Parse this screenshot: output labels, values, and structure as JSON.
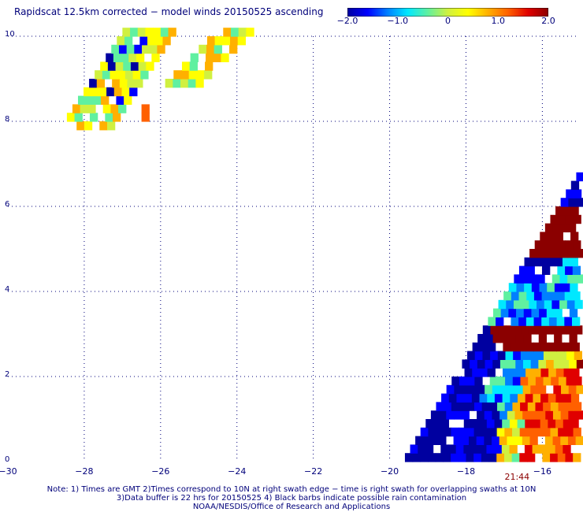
{
  "title": "Rapidscat 12.5km corrected − model winds 20150525 ascending",
  "colorbar": {
    "labels": [
      "−2.0",
      "−1.0",
      "0",
      "1.0",
      "2.0"
    ],
    "values": [
      -2.0,
      -1.0,
      0,
      1.0,
      2.0
    ],
    "range": [
      -2.0,
      2.0
    ],
    "colors": [
      "#0000a0",
      "#0000ff",
      "#0080ff",
      "#00e8ff",
      "#60f0a0",
      "#d0f040",
      "#ffff00",
      "#ffb000",
      "#ff6000",
      "#e00000",
      "#8b0000"
    ]
  },
  "map": {
    "xlim": [
      -30,
      -15.1
    ],
    "ylim": [
      0,
      10
    ],
    "x_ticks": [
      -30,
      -28,
      -26,
      -24,
      -22,
      -20,
      -18,
      -16
    ],
    "y_ticks": [
      0,
      2,
      4,
      6,
      8,
      10
    ],
    "x_tick_labels": [
      "−30",
      "−28",
      "−26",
      "−24",
      "−22",
      "−20",
      "−18",
      "−16"
    ],
    "y_tick_labels": [
      "0",
      "2",
      "4",
      "6",
      "8",
      "10"
    ],
    "grid": "dotted",
    "cell_size_deg": 0.2,
    "swath_times": [
      {
        "label": "21:44",
        "lon": -16.7,
        "lat": -0.35
      }
    ]
  },
  "notes": [
    "Note: 1) Times are GMT 2)Times correspond to 10N at right swath edge − time is right swath for overlapping swaths at 10N",
    "3)Data buffer is 22 hrs for 20150525 4) Black barbs indicate possible rain contamination",
    "NOAA/NESDIS/Office of Research and Applications"
  ]
}
